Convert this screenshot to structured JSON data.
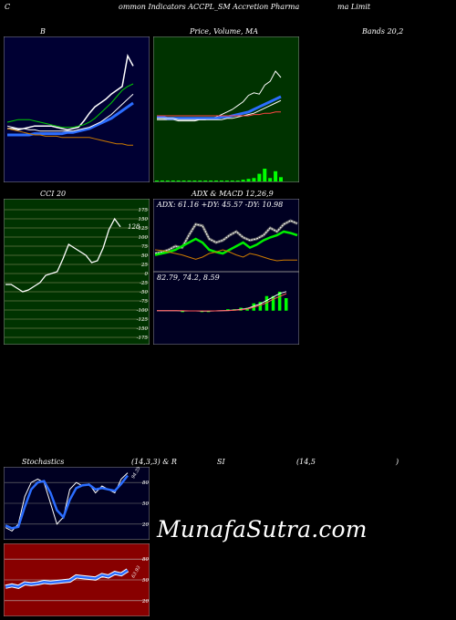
{
  "header": {
    "c": "C",
    "title": "ommon Indicators ACCPL_SM Accretion Pharma",
    "limit": "ma Limit"
  },
  "row1": {
    "label_b": "B",
    "label_price": "Price, Volume, MA",
    "label_bands": "Bands 20,2"
  },
  "row2": {
    "label_cci": "CCI 20",
    "label_adx": "ADX  & MACD 12,26,9",
    "adx_text": "ADX: 61.16  +DY: 45.57 -DY: 10.98",
    "macd_text": "82.79,  74.2,  8.59"
  },
  "row3": {
    "label_stoch": "Stochastics",
    "label_stoch_params": "(14,3,3) & R",
    "label_rsi": "SI",
    "label_rsi_params": "(14,5",
    "label_close": ")"
  },
  "watermark": "MunafaSutra.com",
  "colors": {
    "bollinger_bg": "#000033",
    "price_bg": "#003300",
    "cci_bg": "#003300",
    "adx_bg": "#000022",
    "stoch_bg": "#000022",
    "rsi_bg": "#880000"
  },
  "chart_data": [
    {
      "type": "line",
      "panel": "bollinger",
      "series": [
        {
          "values": [
            35,
            35,
            34,
            35,
            36,
            37,
            37,
            37,
            37,
            36,
            35,
            34,
            35,
            36,
            41,
            47,
            52,
            55,
            58,
            62,
            65,
            68,
            92,
            84
          ]
        },
        {
          "values": [
            30,
            30,
            30,
            30,
            30,
            31,
            31,
            31,
            31,
            31,
            31,
            32,
            32,
            33,
            34,
            35,
            37,
            39,
            41,
            43,
            46,
            49,
            52,
            55
          ]
        },
        {
          "values": [
            40,
            41,
            42,
            42,
            42,
            41,
            40,
            39,
            38,
            37,
            36,
            36,
            36,
            37,
            38,
            40,
            43,
            47,
            51,
            55,
            60,
            65,
            68,
            70
          ]
        },
        {
          "values": [
            35,
            34,
            33,
            32,
            31,
            30,
            30,
            29,
            29,
            29,
            28,
            28,
            28,
            28,
            28,
            28,
            27,
            26,
            25,
            24,
            23,
            23,
            22,
            22
          ]
        },
        {
          "values": [
            37,
            36,
            35,
            35,
            34,
            34,
            33,
            33,
            33,
            33,
            33,
            33,
            33,
            34,
            35,
            36,
            38,
            40,
            43,
            46,
            50,
            54,
            58,
            62
          ]
        }
      ]
    },
    {
      "type": "line",
      "panel": "price_volume_ma",
      "series": [
        {
          "values": [
            42,
            42,
            42,
            42,
            41,
            41,
            41,
            41,
            42,
            42,
            43,
            44,
            46,
            48,
            50,
            53,
            56,
            61,
            63,
            62,
            69,
            72,
            80,
            75
          ]
        },
        {
          "values": [
            44,
            44,
            43,
            43,
            43,
            43,
            43,
            43,
            43,
            43,
            43,
            43,
            44,
            44,
            45,
            46,
            47,
            48,
            50,
            52,
            54,
            56,
            58,
            60
          ]
        },
        {
          "values": [
            43,
            43,
            43,
            43,
            42,
            42,
            42,
            42,
            42,
            42,
            42,
            42,
            42,
            43,
            43,
            44,
            45,
            46,
            47,
            49,
            51,
            53,
            55,
            57
          ]
        },
        {
          "values": [
            45,
            45,
            45,
            45,
            45,
            45,
            45,
            45,
            45,
            45,
            45,
            45,
            45,
            45,
            45,
            45,
            45,
            45,
            46,
            46,
            47,
            47,
            48,
            48
          ]
        }
      ],
      "volume": [
        0,
        0,
        0,
        0,
        0,
        0,
        0,
        0,
        0,
        0,
        0,
        0,
        0,
        0,
        0,
        0,
        2,
        3,
        4,
        9,
        15,
        4,
        12,
        5
      ]
    },
    {
      "type": "line",
      "panel": "cci",
      "yticks": [
        175,
        150,
        125,
        100,
        75,
        50,
        25,
        0,
        -25,
        -50,
        -75,
        -100,
        -125,
        -150,
        -175
      ],
      "annotation": "128",
      "series": [
        {
          "values": [
            -30,
            -30,
            -40,
            -50,
            -45,
            -35,
            -25,
            -5,
            0,
            5,
            40,
            80,
            70,
            60,
            50,
            30,
            35,
            70,
            120,
            150,
            128
          ]
        }
      ]
    },
    {
      "type": "line",
      "panel": "adx",
      "series": [
        {
          "values": [
            20,
            22,
            25,
            30,
            28,
            45,
            60,
            58,
            40,
            35,
            38,
            45,
            50,
            42,
            38,
            40,
            45,
            55,
            50,
            60,
            65,
            61
          ]
        },
        {
          "values": [
            18,
            20,
            22,
            25,
            30,
            35,
            40,
            35,
            25,
            22,
            20,
            25,
            30,
            35,
            28,
            32,
            38,
            42,
            45,
            50,
            48,
            45
          ]
        },
        {
          "values": [
            25,
            24,
            22,
            20,
            18,
            15,
            12,
            15,
            20,
            22,
            25,
            22,
            18,
            15,
            20,
            18,
            15,
            12,
            10,
            11,
            11,
            11
          ]
        }
      ]
    },
    {
      "type": "line",
      "panel": "macd",
      "series": [
        {
          "values": [
            0,
            0,
            0,
            0,
            -1,
            -1,
            -1,
            -2,
            -2,
            -1,
            0,
            1,
            3,
            6,
            10,
            20,
            30,
            45,
            60,
            75,
            82.79
          ]
        },
        {
          "values": [
            0,
            0,
            0,
            0,
            0,
            -1,
            -1,
            -1,
            -1,
            -1,
            0,
            0,
            2,
            4,
            8,
            15,
            24,
            35,
            50,
            62,
            74.2
          ]
        }
      ]
    },
    {
      "type": "line",
      "panel": "stochastics",
      "yticks": [
        80,
        50,
        20
      ],
      "annotation": "94.35",
      "series": [
        {
          "values": [
            15,
            10,
            20,
            60,
            80,
            85,
            80,
            50,
            20,
            30,
            70,
            80,
            75,
            78,
            65,
            75,
            70,
            65,
            85,
            94
          ]
        },
        {
          "values": [
            18,
            14,
            16,
            45,
            70,
            80,
            82,
            65,
            40,
            30,
            55,
            72,
            76,
            77,
            70,
            72,
            70,
            68,
            78,
            90
          ]
        }
      ]
    },
    {
      "type": "line",
      "panel": "rsi",
      "yticks": [
        80,
        50,
        20
      ],
      "annotation": "63.93",
      "series": [
        {
          "values": [
            40,
            42,
            40,
            45,
            44,
            45,
            47,
            46,
            47,
            48,
            49,
            55,
            54,
            53,
            52,
            57,
            55,
            60,
            58,
            64
          ]
        }
      ]
    }
  ]
}
